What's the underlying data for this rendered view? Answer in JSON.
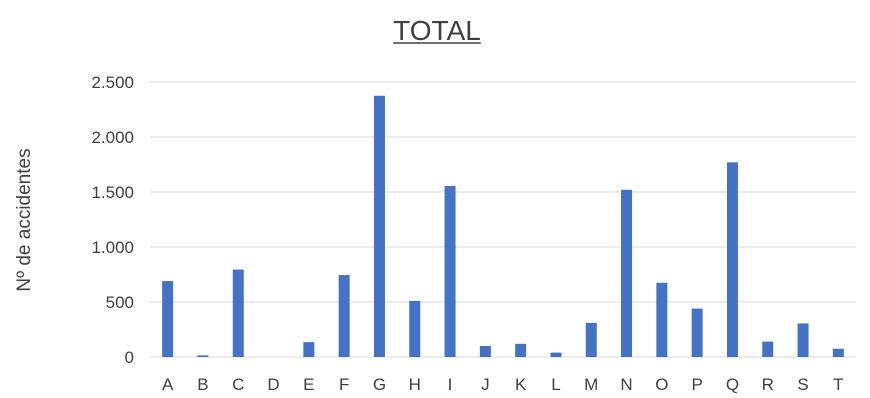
{
  "chart_data": {
    "type": "bar",
    "title": "TOTAL",
    "xlabel": "",
    "ylabel": "Nº de accidentes",
    "categories": [
      "A",
      "B",
      "C",
      "D",
      "E",
      "F",
      "G",
      "H",
      "I",
      "J",
      "K",
      "L",
      "M",
      "N",
      "O",
      "P",
      "Q",
      "R",
      "S",
      "T"
    ],
    "values": [
      690,
      15,
      795,
      0,
      135,
      745,
      2375,
      510,
      1555,
      100,
      120,
      40,
      310,
      1520,
      675,
      440,
      1770,
      140,
      305,
      75
    ],
    "ylim": [
      0,
      2500
    ],
    "yticks": [
      0,
      500,
      1000,
      1500,
      2000,
      2500
    ],
    "ytick_labels": [
      "0",
      "500",
      "1.000",
      "1.500",
      "2.000",
      "2.500"
    ],
    "grid": true,
    "legend": "none",
    "bar_color": "#4472C4",
    "grid_color": "#D9D9D9"
  }
}
